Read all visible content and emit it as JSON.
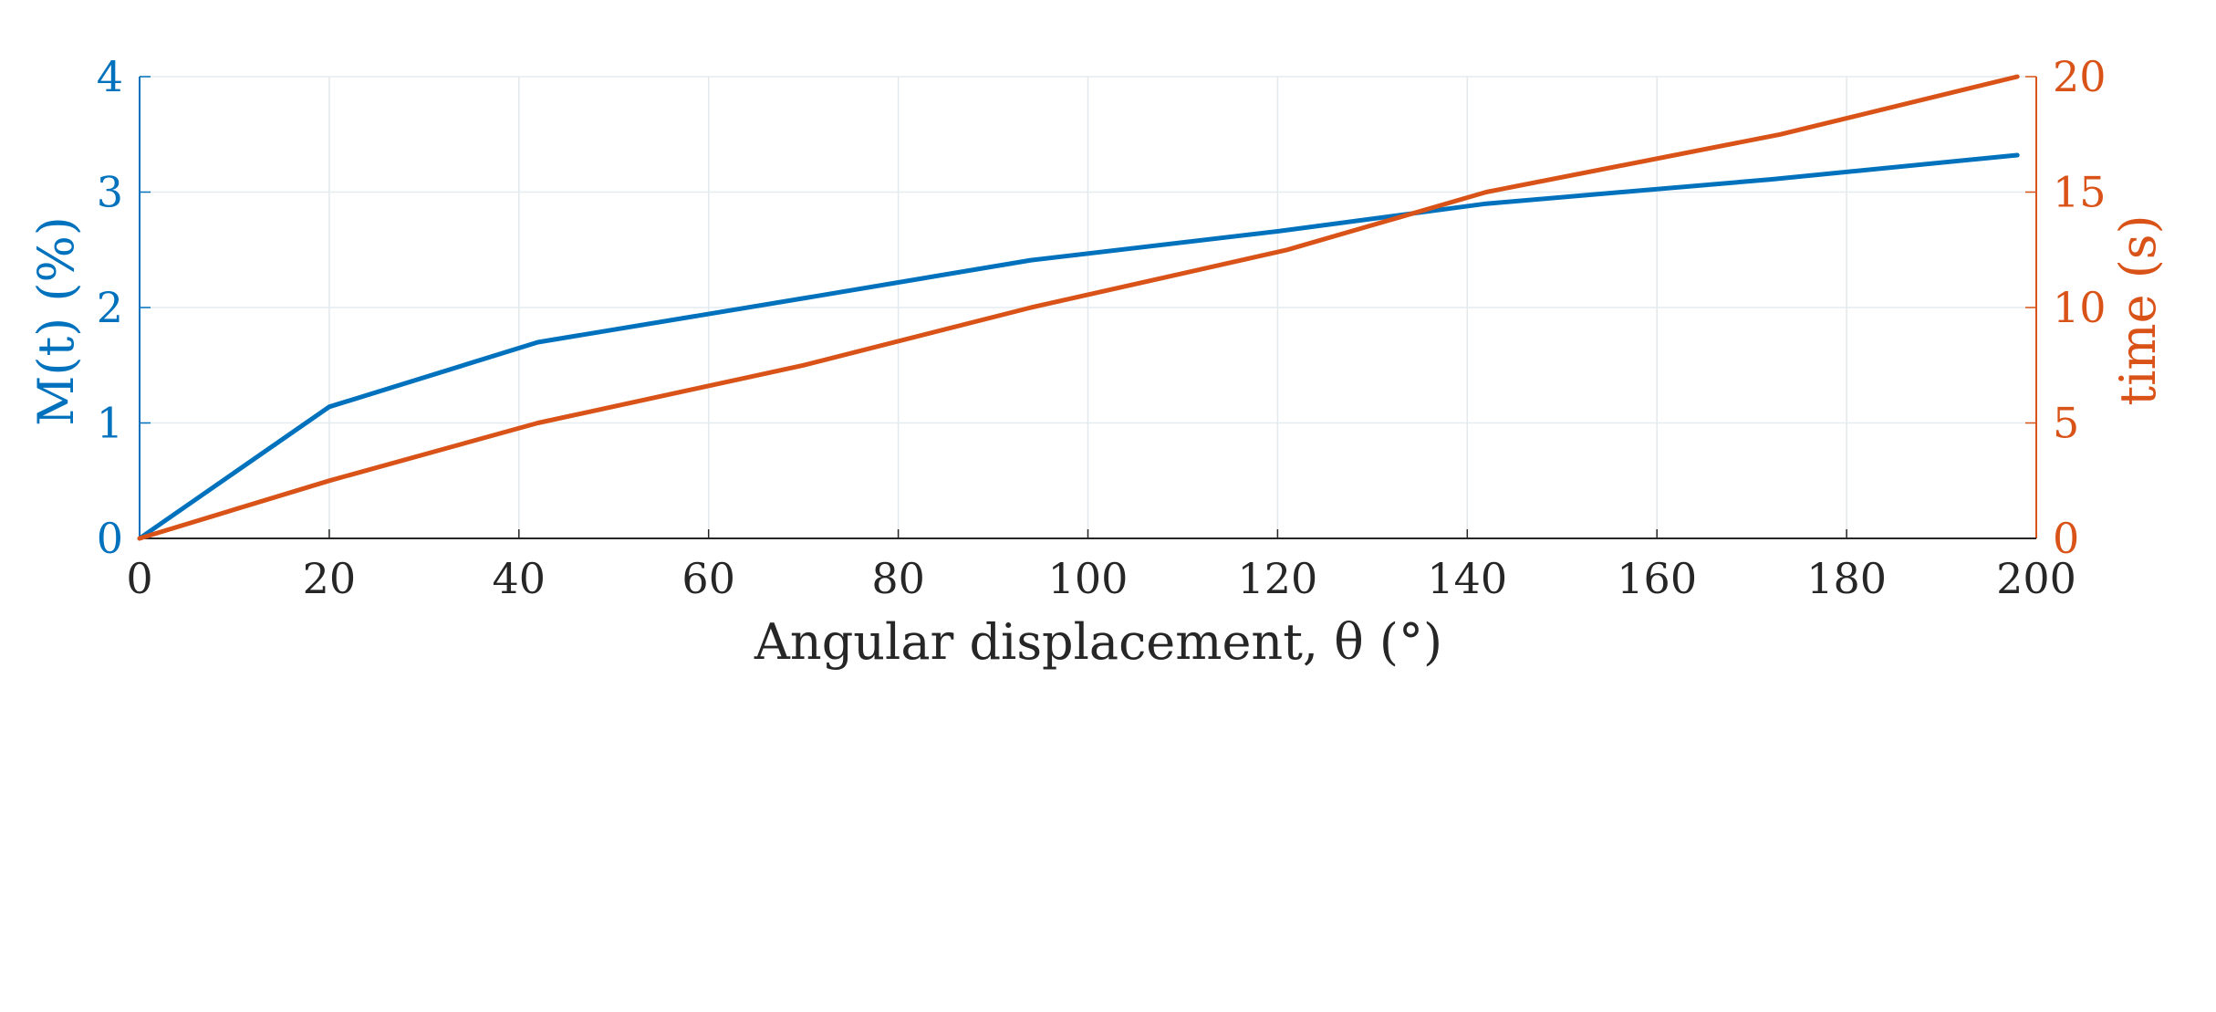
{
  "chart_data": {
    "type": "line",
    "xlabel": "Angular displacement, θ (°)",
    "ylabel_left": "M(t) (%)",
    "ylabel_right": "time (s)",
    "xlim": [
      0,
      200
    ],
    "ylim_left": [
      0,
      4
    ],
    "ylim_right": [
      0,
      20
    ],
    "x_ticks": [
      "0",
      "20",
      "40",
      "60",
      "80",
      "100",
      "120",
      "140",
      "160",
      "180",
      "200"
    ],
    "y_left_ticks": [
      "0",
      "1",
      "2",
      "3",
      "4"
    ],
    "y_right_ticks": [
      "0",
      "5",
      "10",
      "15",
      "20"
    ],
    "grid": true,
    "series": [
      {
        "axis": "left",
        "color": "#0072BD",
        "x": [
          0,
          20,
          42,
          70,
          94,
          120,
          142,
          172,
          198
        ],
        "y": [
          0,
          1.14,
          1.7,
          2.08,
          2.41,
          2.66,
          2.9,
          3.11,
          3.32
        ]
      },
      {
        "axis": "right",
        "color": "#D95319",
        "x": [
          0,
          20,
          42,
          70,
          94,
          121,
          142,
          173,
          198
        ],
        "y": [
          0,
          2.5,
          5.0,
          7.5,
          10.0,
          12.5,
          15.0,
          17.5,
          20.0
        ]
      }
    ]
  }
}
